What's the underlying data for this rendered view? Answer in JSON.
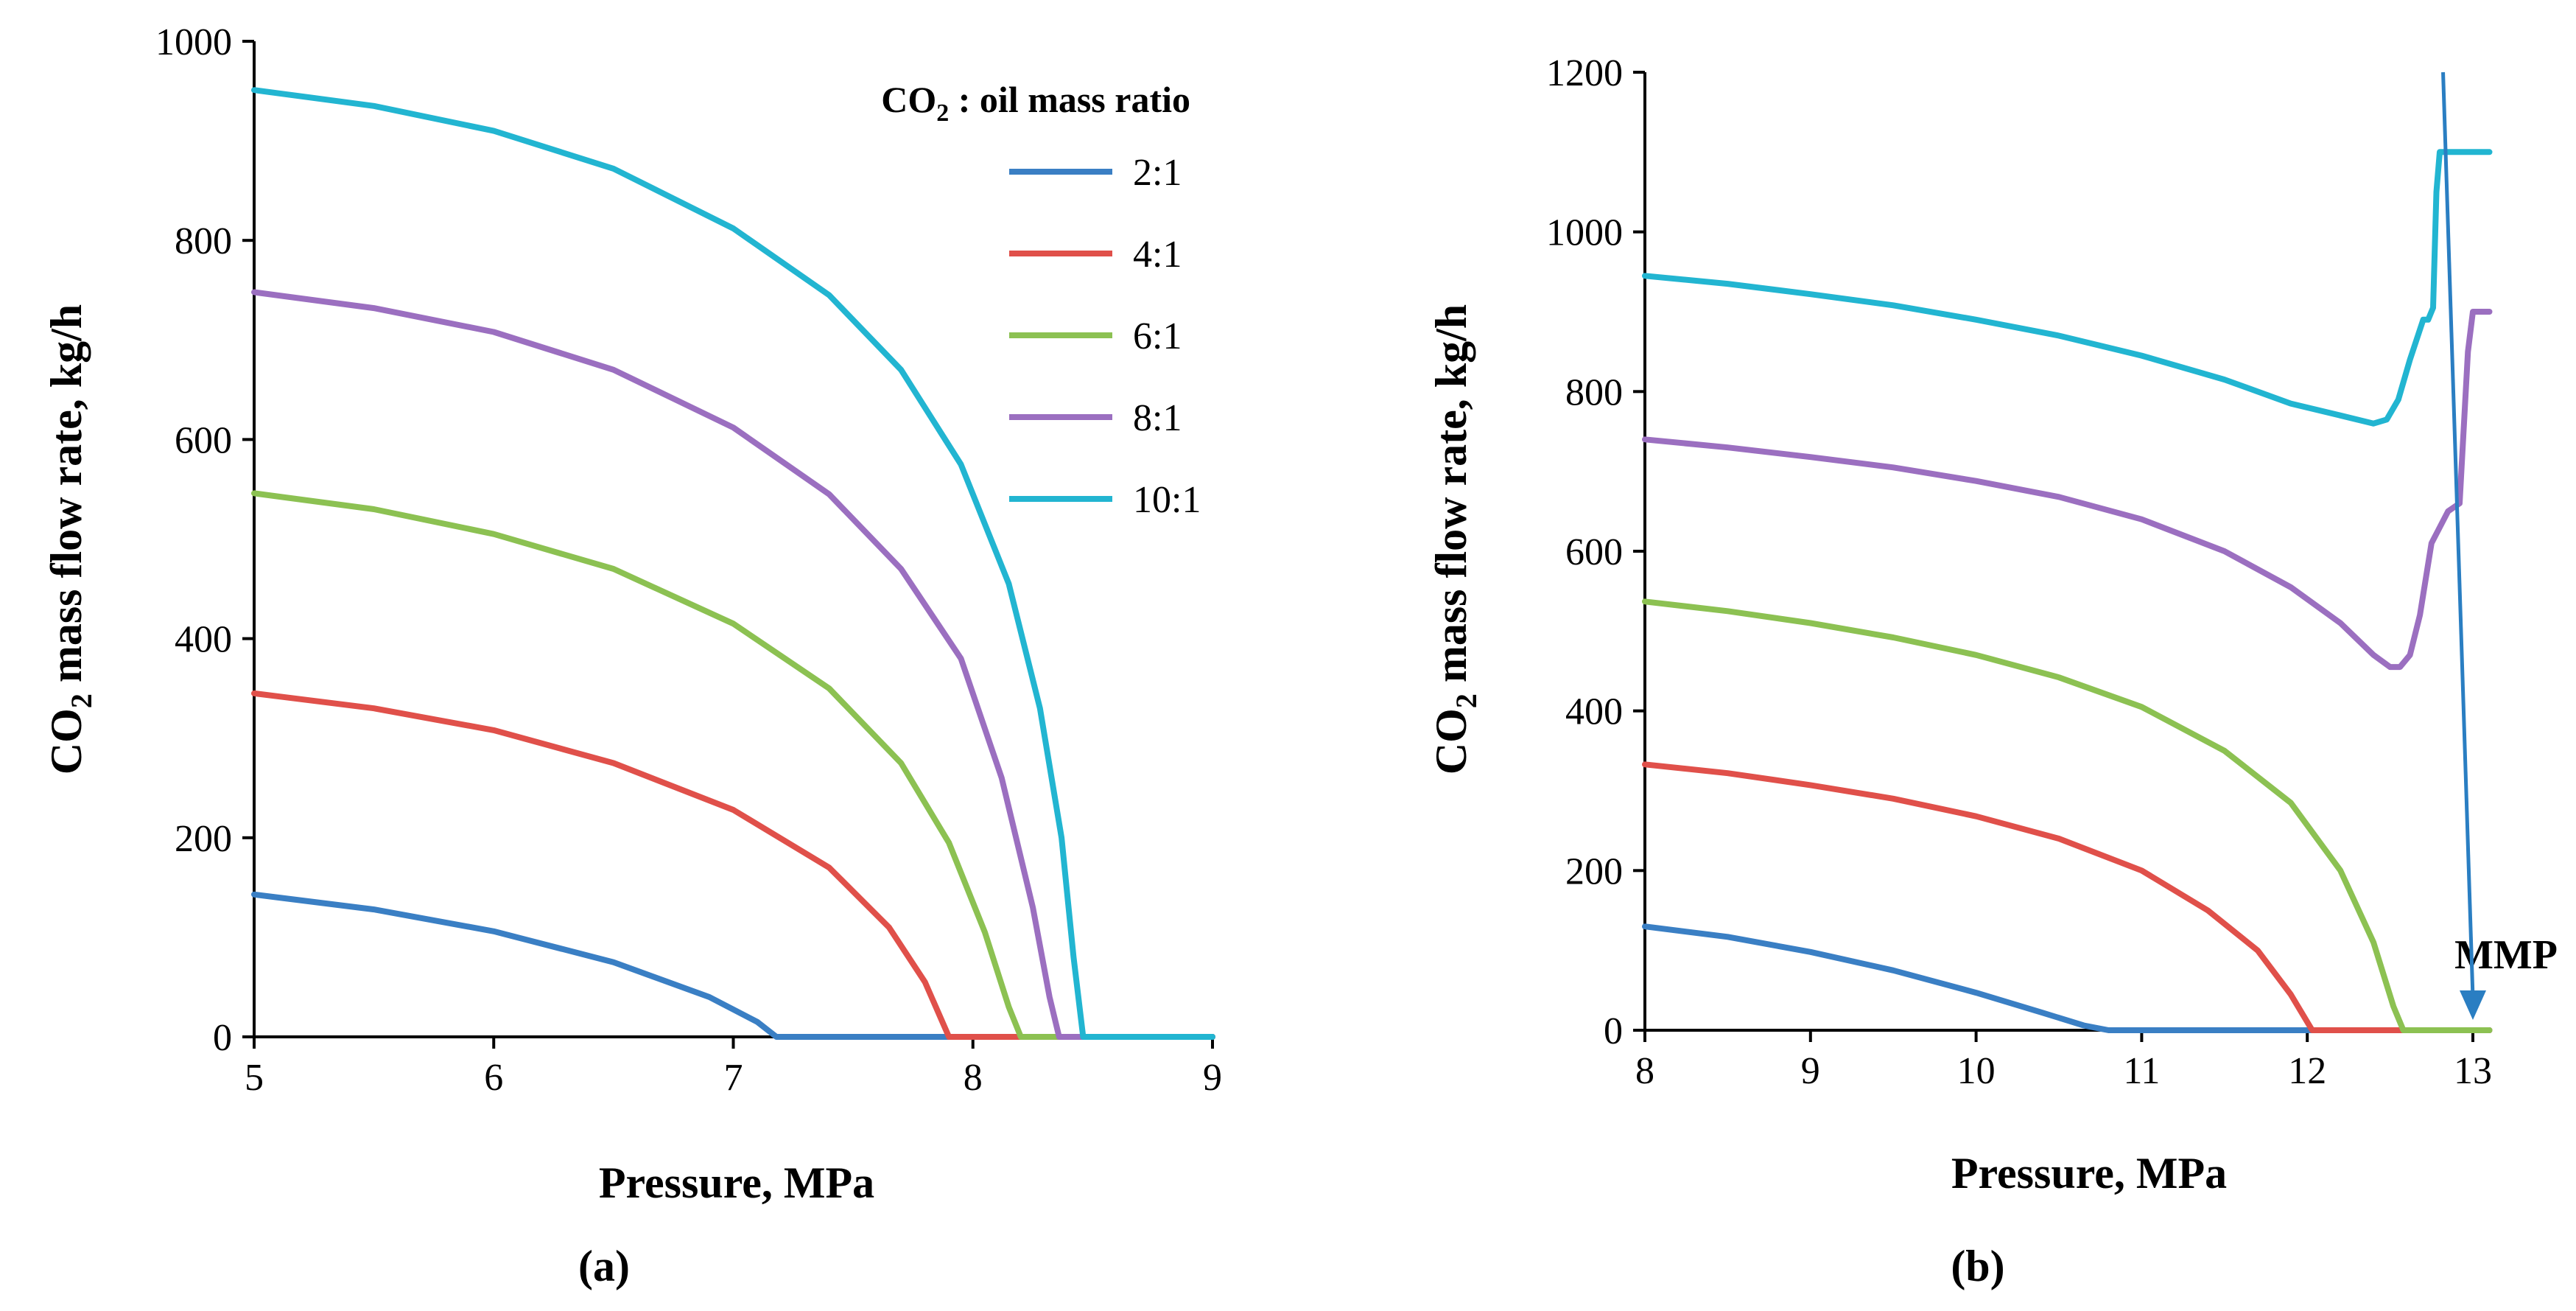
{
  "chart_data": [
    {
      "type": "line",
      "panel_label": "(a)",
      "xlabel": "Pressure, MPa",
      "ylabel_main": "CO",
      "ylabel_sub": "2",
      "ylabel_rest": " mass flow rate, kg/h",
      "xlim": [
        5,
        9
      ],
      "ylim": [
        0,
        1000
      ],
      "xticks": [
        "5",
        "6",
        "7",
        "8",
        "9"
      ],
      "yticks": [
        "0",
        "200",
        "400",
        "600",
        "800",
        "1000"
      ],
      "legend": {
        "position": "top-right",
        "title_main": "CO",
        "title_sub": "2",
        "title_rest": " : oil mass ratio"
      },
      "series": [
        {
          "name": "2:1",
          "color": "#3a7fc4",
          "x": [
            5.0,
            5.5,
            6.0,
            6.5,
            6.9,
            7.1,
            7.18,
            9.0
          ],
          "y": [
            143,
            128,
            106,
            75,
            40,
            15,
            0,
            0
          ]
        },
        {
          "name": "4:1",
          "color": "#e0504a",
          "x": [
            5.0,
            5.5,
            6.0,
            6.5,
            7.0,
            7.4,
            7.65,
            7.8,
            7.9,
            9.0
          ],
          "y": [
            345,
            330,
            308,
            275,
            228,
            170,
            110,
            55,
            0,
            0
          ]
        },
        {
          "name": "6:1",
          "color": "#8cc152",
          "x": [
            5.0,
            5.5,
            6.0,
            6.5,
            7.0,
            7.4,
            7.7,
            7.9,
            8.05,
            8.15,
            8.2,
            9.0
          ],
          "y": [
            546,
            530,
            505,
            470,
            415,
            350,
            275,
            195,
            105,
            30,
            0,
            0
          ]
        },
        {
          "name": "8:1",
          "color": "#9b6fc0",
          "x": [
            5.0,
            5.5,
            6.0,
            6.5,
            7.0,
            7.4,
            7.7,
            7.95,
            8.12,
            8.25,
            8.32,
            8.36,
            9.0
          ],
          "y": [
            748,
            732,
            708,
            670,
            612,
            545,
            470,
            380,
            260,
            130,
            40,
            0,
            0
          ]
        },
        {
          "name": "10:1",
          "color": "#22b5d1",
          "x": [
            5.0,
            5.5,
            6.0,
            6.5,
            7.0,
            7.4,
            7.7,
            7.95,
            8.15,
            8.28,
            8.37,
            8.42,
            8.46,
            9.0
          ],
          "y": [
            951,
            935,
            910,
            872,
            812,
            745,
            670,
            575,
            455,
            330,
            200,
            80,
            0,
            0
          ]
        }
      ]
    },
    {
      "type": "line",
      "panel_label": "(b)",
      "xlabel": "Pressure, MPa",
      "ylabel_main": "CO",
      "ylabel_sub": "2",
      "ylabel_rest": " mass flow rate, kg/h",
      "xlim": [
        8,
        13
      ],
      "ylim": [
        0,
        1200
      ],
      "xticks": [
        "8",
        "9",
        "10",
        "11",
        "12",
        "13"
      ],
      "yticks": [
        "0",
        "200",
        "400",
        "600",
        "800",
        "1000",
        "1200"
      ],
      "annotation": {
        "label": "MMP",
        "color": "#2a7ec2",
        "arrow_from": [
          12.82,
          1200
        ],
        "arrow_to": [
          13.0,
          0
        ]
      },
      "series": [
        {
          "name": "2:1",
          "color": "#3a7fc4",
          "x": [
            8.0,
            8.5,
            9.0,
            9.5,
            10.0,
            10.4,
            10.65,
            10.8,
            13.1
          ],
          "y": [
            130,
            117,
            98,
            75,
            47,
            22,
            6,
            0,
            0
          ]
        },
        {
          "name": "4:1",
          "color": "#e0504a",
          "x": [
            8.0,
            8.5,
            9.0,
            9.5,
            10.0,
            10.5,
            11.0,
            11.4,
            11.7,
            11.9,
            12.03,
            13.1
          ],
          "y": [
            333,
            322,
            307,
            290,
            268,
            240,
            200,
            150,
            100,
            45,
            0,
            0
          ]
        },
        {
          "name": "6:1",
          "color": "#8cc152",
          "x": [
            8.0,
            8.5,
            9.0,
            9.5,
            10.0,
            10.5,
            11.0,
            11.5,
            11.9,
            12.2,
            12.4,
            12.52,
            12.58,
            13.1
          ],
          "y": [
            537,
            525,
            510,
            492,
            470,
            442,
            405,
            350,
            285,
            200,
            110,
            30,
            0,
            0
          ]
        },
        {
          "name": "8:1",
          "color": "#9b6fc0",
          "x": [
            8.0,
            8.5,
            9.0,
            9.5,
            10.0,
            10.5,
            11.0,
            11.5,
            11.9,
            12.2,
            12.4,
            12.5,
            12.56,
            12.62,
            12.68,
            12.75,
            12.85,
            12.92,
            12.97,
            13.0,
            13.1
          ],
          "y": [
            740,
            730,
            718,
            705,
            688,
            668,
            640,
            600,
            555,
            510,
            470,
            455,
            455,
            470,
            520,
            610,
            650,
            660,
            850,
            900,
            900
          ]
        },
        {
          "name": "10:1",
          "color": "#22b5d1",
          "x": [
            8.0,
            8.5,
            9.0,
            9.5,
            10.0,
            10.5,
            11.0,
            11.5,
            11.9,
            12.2,
            12.4,
            12.48,
            12.55,
            12.62,
            12.7,
            12.73,
            12.76,
            12.78,
            12.8,
            12.83,
            13.1
          ],
          "y": [
            945,
            935,
            922,
            908,
            890,
            870,
            845,
            815,
            785,
            770,
            760,
            765,
            790,
            840,
            890,
            890,
            905,
            1050,
            1100,
            1100,
            1100
          ]
        }
      ]
    }
  ]
}
